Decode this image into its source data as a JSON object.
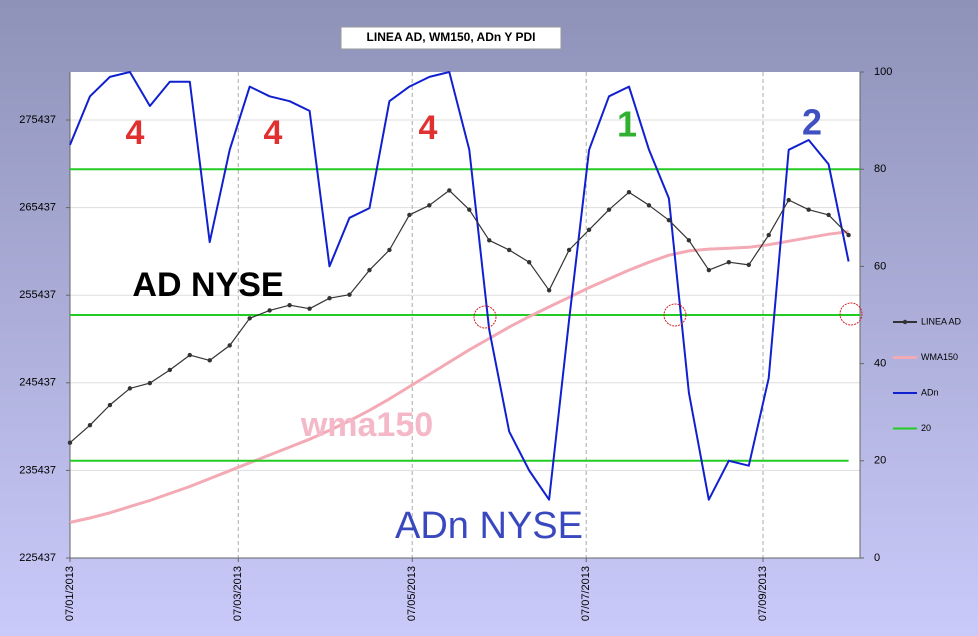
{
  "chart_data": {
    "type": "line",
    "title": "LINEA AD, WM150, ADn Y PDI",
    "x": [
      "2013-01-07",
      "2013-01-14",
      "2013-01-21",
      "2013-01-28",
      "2013-02-04",
      "2013-02-11",
      "2013-02-18",
      "2013-02-25",
      "2013-03-04",
      "2013-03-11",
      "2013-03-18",
      "2013-03-25",
      "2013-04-01",
      "2013-04-08",
      "2013-04-15",
      "2013-04-22",
      "2013-04-29",
      "2013-05-06",
      "2013-05-13",
      "2013-05-20",
      "2013-05-27",
      "2013-06-03",
      "2013-06-10",
      "2013-06-17",
      "2013-06-24",
      "2013-07-01",
      "2013-07-08",
      "2013-07-15",
      "2013-07-22",
      "2013-07-29",
      "2013-08-05",
      "2013-08-12",
      "2013-08-19",
      "2013-08-26",
      "2013-09-02",
      "2013-09-09",
      "2013-09-16",
      "2013-09-23",
      "2013-09-30",
      "2013-10-07"
    ],
    "xlim": [
      "2013-01-07",
      "2013-10-11"
    ],
    "xticks": [
      {
        "value": "2013-01-07",
        "label": "07/01/2013"
      },
      {
        "value": "2013-03-07",
        "label": "07/03/2013"
      },
      {
        "value": "2013-05-07",
        "label": "07/05/2013"
      },
      {
        "value": "2013-07-07",
        "label": "07/07/2013"
      },
      {
        "value": "2013-09-07",
        "label": "07/09/2013"
      }
    ],
    "ylim": [
      225437,
      280917
    ],
    "yticks": [
      225437,
      235437,
      245437,
      255437,
      265437,
      275437
    ],
    "y2lim": [
      0,
      100
    ],
    "y2ticks": [
      0,
      20,
      40,
      60,
      80,
      100
    ],
    "grid": true,
    "legend": "right",
    "series": [
      {
        "name": "LINEA AD",
        "color": "#333333",
        "markers": true,
        "values": [
          238600,
          240600,
          242900,
          244800,
          245400,
          246900,
          248600,
          248000,
          249700,
          252800,
          253700,
          254300,
          253900,
          255100,
          255500,
          258300,
          260600,
          264600,
          265700,
          267400,
          265200,
          261700,
          260600,
          259200,
          256000,
          260600,
          262900,
          265200,
          267200,
          265700,
          264000,
          261700,
          258300,
          259200,
          258900,
          262300,
          266300,
          265200,
          264600,
          262300
        ]
      },
      {
        "name": "WMA150",
        "color": "#f4aab4",
        "values": [
          229500,
          230000,
          230600,
          231300,
          232000,
          232800,
          233600,
          234500,
          235400,
          236300,
          237200,
          238100,
          239000,
          240000,
          241100,
          242300,
          243600,
          245000,
          246400,
          247800,
          249200,
          250500,
          251800,
          253000,
          254100,
          255200,
          256300,
          257300,
          258300,
          259200,
          260000,
          260500,
          260700,
          260800,
          260900,
          261200,
          261600,
          262000,
          262400,
          262700
        ]
      },
      {
        "name": "ADn",
        "color": "#1020d0",
        "axis": "y2",
        "values": [
          85,
          95,
          99,
          100,
          93,
          98,
          98,
          65,
          84,
          97,
          95,
          94,
          92,
          60,
          70,
          72,
          94,
          97,
          99,
          100,
          84,
          47,
          26,
          18,
          12,
          49,
          84,
          95,
          97,
          84,
          74,
          34,
          12,
          20,
          19,
          37,
          84,
          86,
          81,
          61
        ]
      },
      {
        "name": "20",
        "color": "#22cc22",
        "axis": "y2",
        "values": [
          20,
          20,
          20,
          20,
          20,
          20,
          20,
          20,
          20,
          20,
          20,
          20,
          20,
          20,
          20,
          20,
          20,
          20,
          20,
          20,
          20,
          20,
          20,
          20,
          20,
          20,
          20,
          20,
          20,
          20,
          20,
          20,
          20,
          20,
          20,
          20,
          20,
          20,
          20,
          20
        ]
      }
    ],
    "reference_lines": [
      50,
      80
    ],
    "annotations": [
      {
        "text": "4",
        "color": "#e03030"
      },
      {
        "text": "4",
        "color": "#e03030"
      },
      {
        "text": "4",
        "color": "#e03030"
      },
      {
        "text": "1",
        "color": "#30b030"
      },
      {
        "text": "2",
        "color": "#4050c0"
      },
      {
        "text": "AD NYSE",
        "color": "#000000"
      },
      {
        "text": "wma150",
        "color": "#f4b8c8"
      },
      {
        "text": "ADn NYSE",
        "color": "#3a48c0"
      }
    ]
  }
}
